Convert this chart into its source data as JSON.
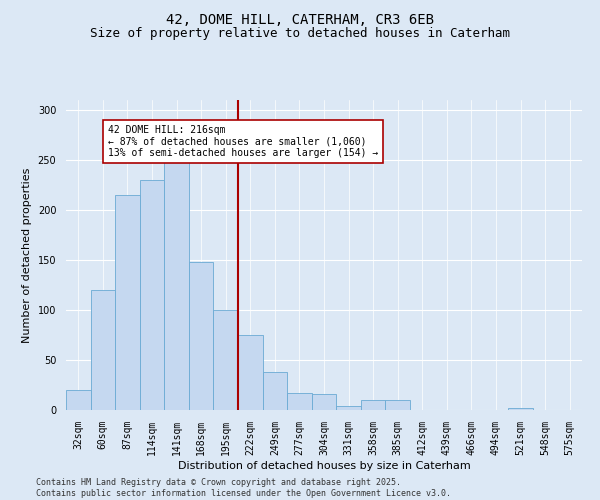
{
  "title": "42, DOME HILL, CATERHAM, CR3 6EB",
  "subtitle": "Size of property relative to detached houses in Caterham",
  "xlabel": "Distribution of detached houses by size in Caterham",
  "ylabel": "Number of detached properties",
  "categories": [
    "32sqm",
    "60sqm",
    "87sqm",
    "114sqm",
    "141sqm",
    "168sqm",
    "195sqm",
    "222sqm",
    "249sqm",
    "277sqm",
    "304sqm",
    "331sqm",
    "358sqm",
    "385sqm",
    "412sqm",
    "439sqm",
    "466sqm",
    "494sqm",
    "521sqm",
    "548sqm",
    "575sqm"
  ],
  "values": [
    20,
    120,
    215,
    230,
    250,
    148,
    100,
    75,
    38,
    17,
    16,
    4,
    10,
    10,
    0,
    0,
    0,
    0,
    2,
    0,
    0
  ],
  "bar_color": "#c5d8f0",
  "bar_edge_color": "#6aaad4",
  "vline_color": "#aa0000",
  "annotation_text": "42 DOME HILL: 216sqm\n← 87% of detached houses are smaller (1,060)\n13% of semi-detached houses are larger (154) →",
  "annotation_box_facecolor": "#ffffff",
  "annotation_box_edgecolor": "#aa0000",
  "ylim": [
    0,
    310
  ],
  "yticks": [
    0,
    50,
    100,
    150,
    200,
    250,
    300
  ],
  "bg_color": "#dce8f5",
  "grid_color": "#ffffff",
  "footer_line1": "Contains HM Land Registry data © Crown copyright and database right 2025.",
  "footer_line2": "Contains public sector information licensed under the Open Government Licence v3.0.",
  "title_fontsize": 10,
  "subtitle_fontsize": 9,
  "axis_label_fontsize": 8,
  "tick_fontsize": 7,
  "annotation_fontsize": 7,
  "footer_fontsize": 6
}
